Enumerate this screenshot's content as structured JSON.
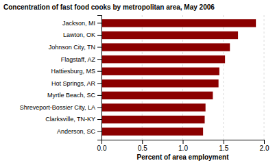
{
  "chart_data": {
    "type": "bar",
    "orientation": "horizontal",
    "title": "Concentration of fast food cooks by metropolitan area, May 2006",
    "categories": [
      "Anderson, SC",
      "Clarksville, TN-KY",
      "Shreveport-Bossier City, LA",
      "Myrtle Beach, SC",
      "Hot Springs, AR",
      "Hattiesburg, MS",
      "Flagstaff, AZ",
      "Johnson City, TN",
      "Lawton, OK",
      "Jackson, MI"
    ],
    "values": [
      1.25,
      1.27,
      1.28,
      1.37,
      1.44,
      1.45,
      1.52,
      1.58,
      1.68,
      1.9
    ],
    "color": "#8B0000",
    "xlabel": "Percent of area employment",
    "xlim": [
      0.0,
      2.0
    ],
    "xticks": [
      {
        "value": 0,
        "label": "0.0"
      },
      0.5,
      {
        "value": 1,
        "label": "1.0"
      },
      1.5,
      {
        "value": 2,
        "label": "2.0"
      }
    ],
    "grid": true
  }
}
